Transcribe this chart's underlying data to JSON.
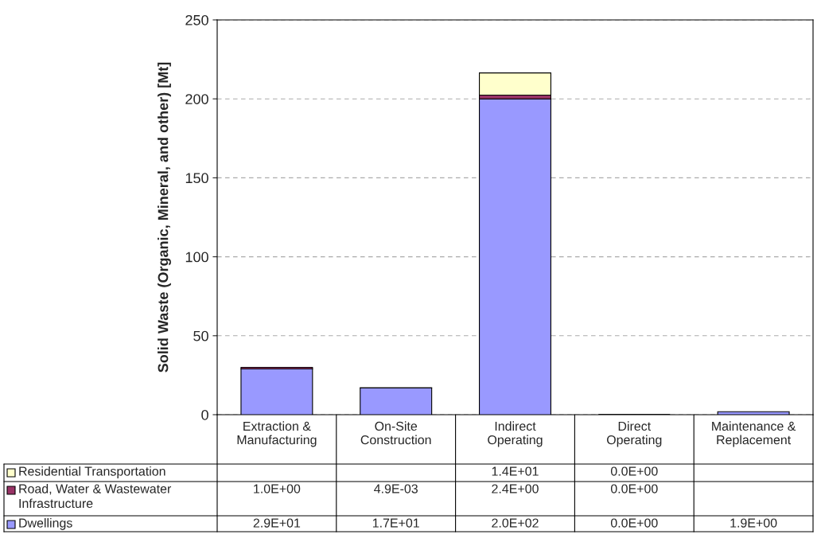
{
  "chart_data": {
    "type": "bar",
    "stacked": true,
    "ylabel": "Solid Waste (Organic, Mineral, and other) [Mt]",
    "categories": [
      "Extraction & Manufacturing",
      "On-Site Construction",
      "Indirect Operating",
      "Direct Operating",
      "Maintenance & Replacement"
    ],
    "series": [
      {
        "name": "Dwellings",
        "color": "#9999ff",
        "values": [
          29,
          17,
          200,
          0,
          1.9
        ],
        "value_labels": [
          "2.9E+01",
          "1.7E+01",
          "2.0E+02",
          "0.0E+00",
          "1.9E+00"
        ]
      },
      {
        "name": "Road, Water & Wastewater Infrastructure",
        "color": "#993366",
        "values": [
          1.0,
          0.0049,
          2.4,
          0,
          null
        ],
        "value_labels": [
          "1.0E+00",
          "4.9E-03",
          "2.4E+00",
          "0.0E+00",
          null
        ]
      },
      {
        "name": "Residential Transportation",
        "color": "#ffffcc",
        "values": [
          null,
          null,
          14,
          0,
          null
        ],
        "value_labels": [
          null,
          null,
          "1.4E+01",
          "0.0E+00",
          null
        ]
      }
    ],
    "ylim": [
      0,
      250
    ],
    "yticks": [
      0,
      50,
      100,
      150,
      200,
      250
    ],
    "grid": "y",
    "legend": "bottom"
  }
}
